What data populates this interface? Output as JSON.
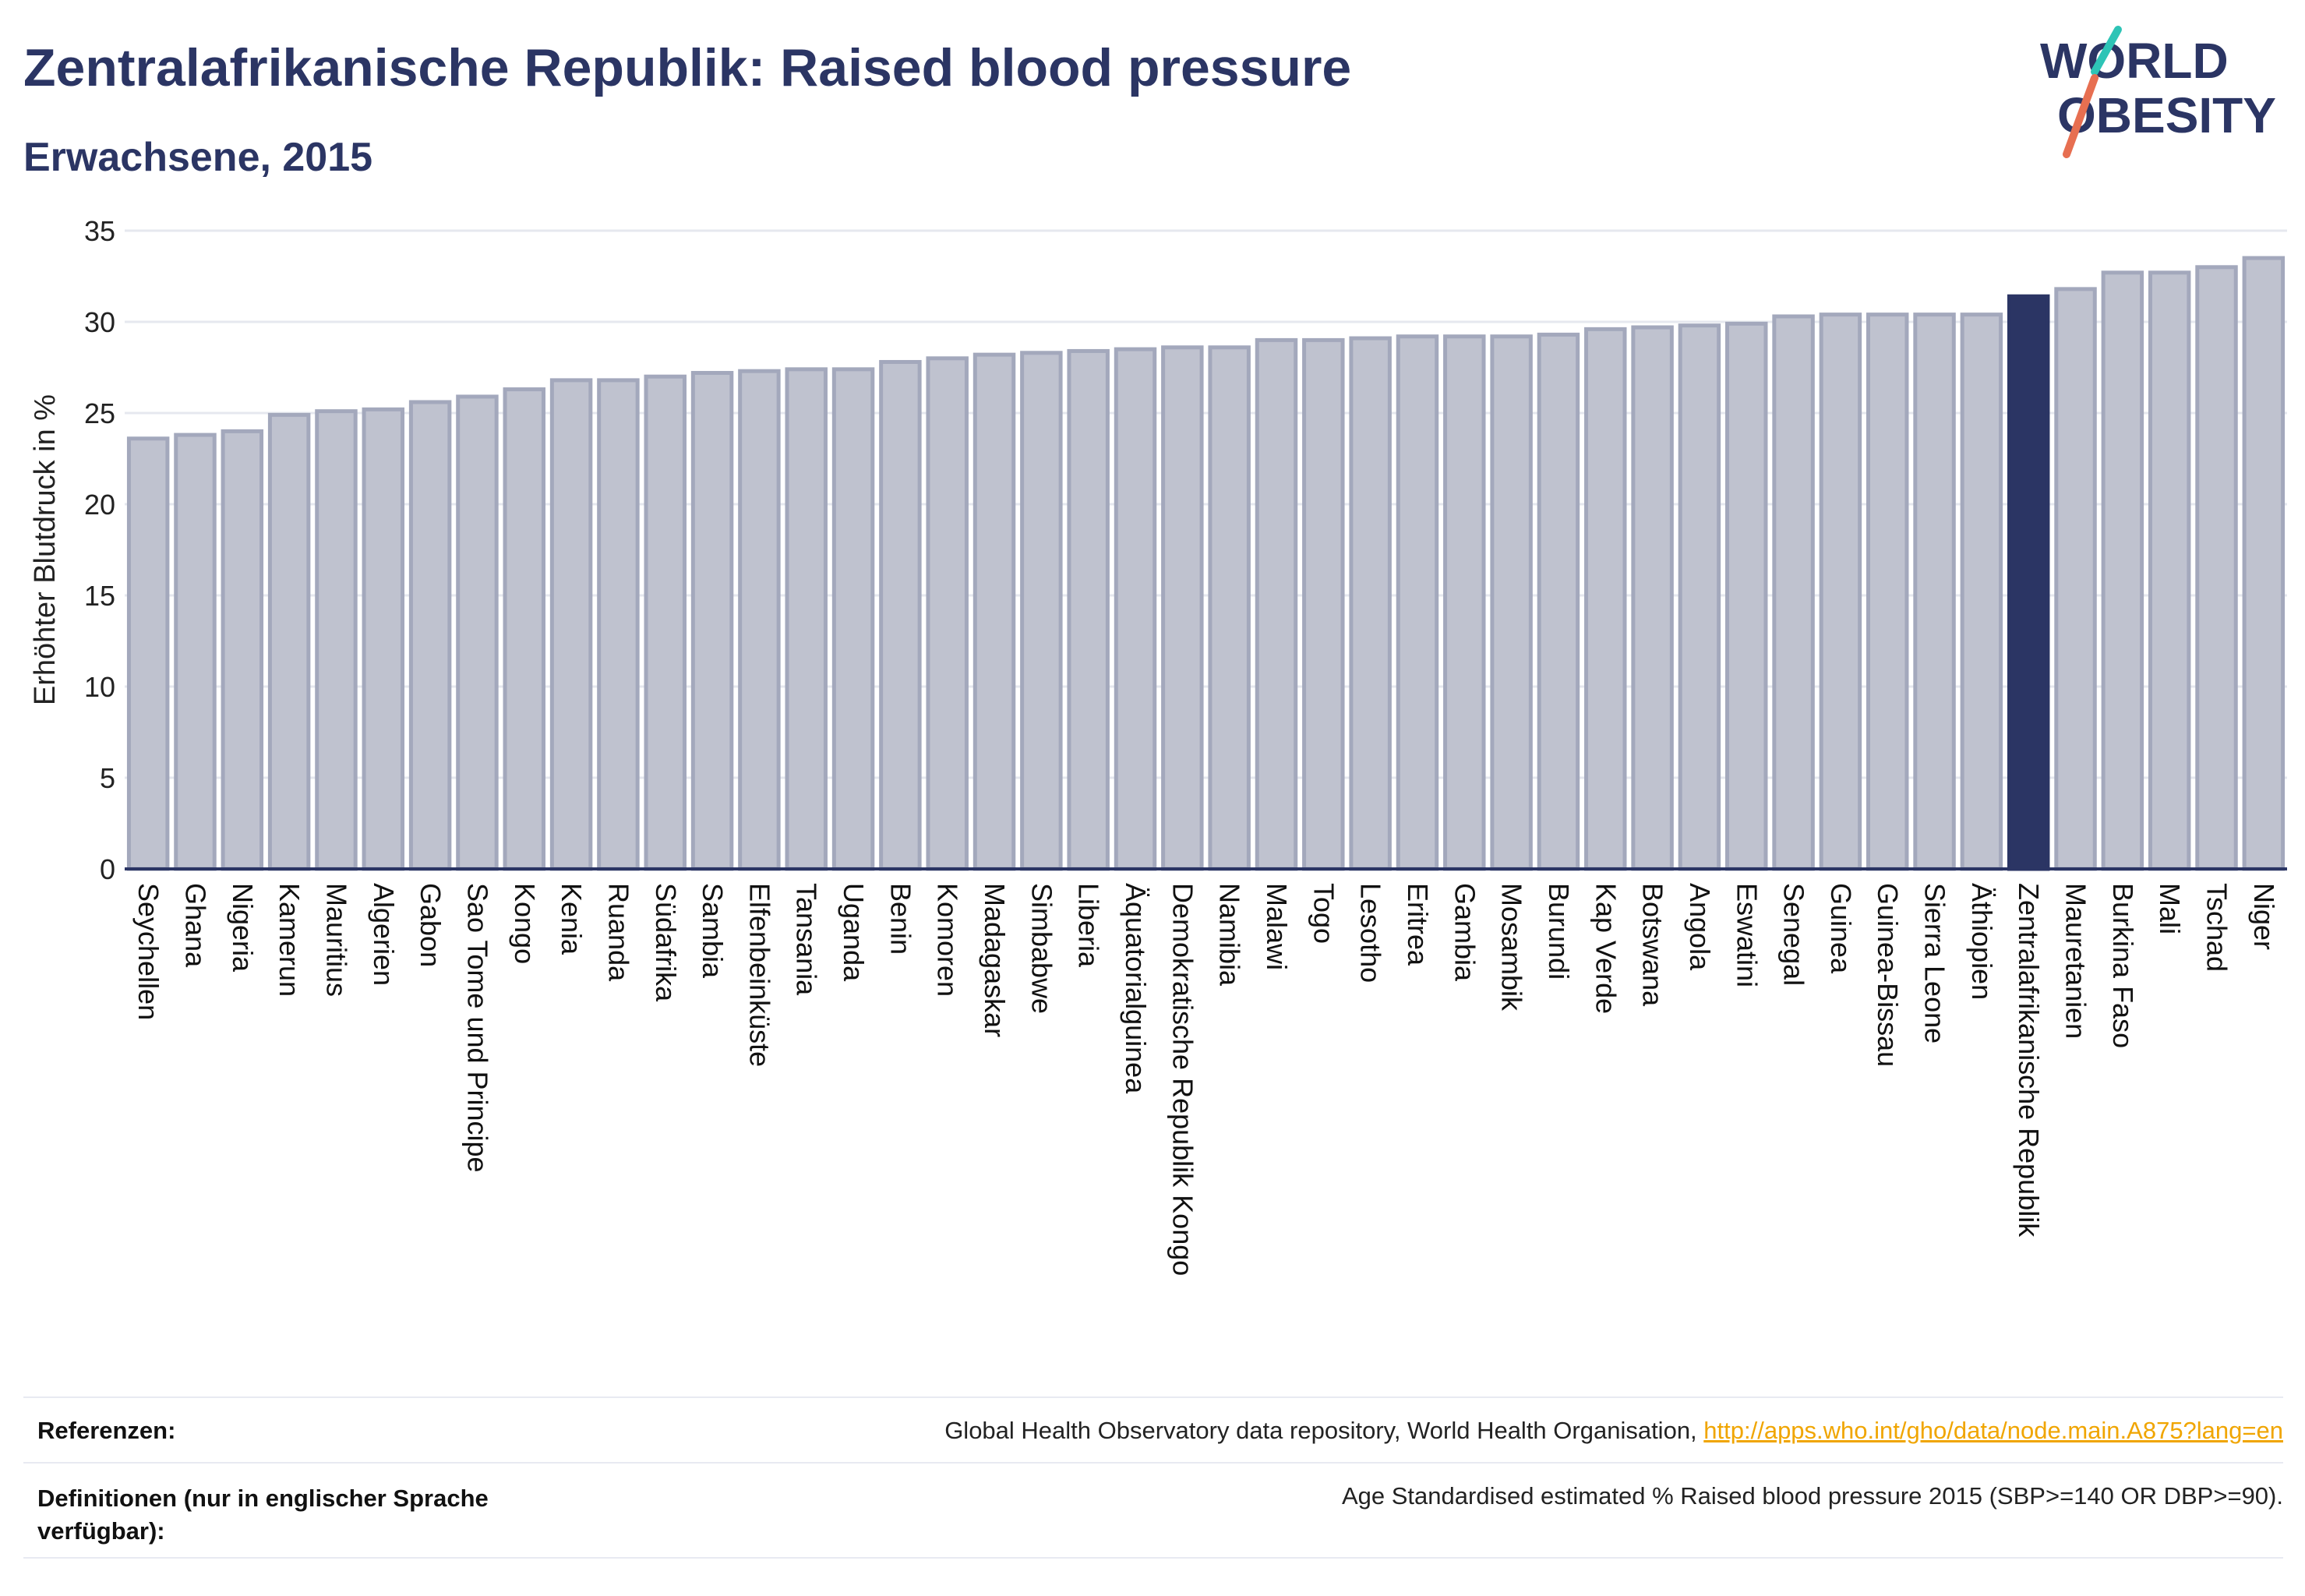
{
  "header": {
    "title": "Zentralafrikanische Republik: Raised blood pressure",
    "subtitle": "Erwachsene, 2015"
  },
  "logo": {
    "line1": "WORLD",
    "line2": "OBESITY",
    "accent_color": "#2ec4b6",
    "slash_color": "#e76f51",
    "text_color": "#2b3564"
  },
  "colors": {
    "bar": "#bfc2cf",
    "bar_edge": "#a3a8bc",
    "highlight": "#2b3564",
    "grid": "#e6e8ef",
    "text": "#2b3564"
  },
  "chart_data": {
    "type": "bar",
    "ylabel": "Erhöhter Blutdruck in %",
    "ylim": [
      0,
      35
    ],
    "yticks": [
      0,
      5,
      10,
      15,
      20,
      25,
      30,
      35
    ],
    "grid": true,
    "highlight": "Zentralafrikanische Republik",
    "categories": [
      "Seychellen",
      "Ghana",
      "Nigeria",
      "Kamerun",
      "Mauritius",
      "Algerien",
      "Gabon",
      "Sao Tome und Principe",
      "Kongo",
      "Kenia",
      "Ruanda",
      "Südafrika",
      "Sambia",
      "Elfenbeinküste",
      "Tansania",
      "Uganda",
      "Benin",
      "Komoren",
      "Madagaskar",
      "Simbabwe",
      "Liberia",
      "Äquatorialguinea",
      "Demokratische Republik Kongo",
      "Namibia",
      "Malawi",
      "Togo",
      "Lesotho",
      "Eritrea",
      "Gambia",
      "Mosambik",
      "Burundi",
      "Kap Verde",
      "Botswana",
      "Angola",
      "Eswatini",
      "Senegal",
      "Guinea",
      "Guinea-Bissau",
      "Sierra Leone",
      "Äthiopien",
      "Zentralafrikanische Republik",
      "Mauretanien",
      "Burkina Faso",
      "Mali",
      "Tschad",
      "Niger"
    ],
    "values": [
      23.6,
      23.8,
      24.0,
      24.9,
      25.1,
      25.2,
      25.6,
      25.9,
      26.3,
      26.8,
      26.8,
      27.0,
      27.2,
      27.3,
      27.4,
      27.4,
      27.8,
      28.0,
      28.2,
      28.3,
      28.4,
      28.5,
      28.6,
      28.6,
      29.0,
      29.0,
      29.1,
      29.2,
      29.2,
      29.2,
      29.3,
      29.6,
      29.7,
      29.8,
      29.9,
      30.3,
      30.4,
      30.4,
      30.4,
      30.4,
      31.4,
      31.8,
      32.7,
      32.7,
      33.0,
      33.5
    ]
  },
  "footer": {
    "ref_label": "Referenzen:",
    "ref_text": "Global Health Observatory data repository, World Health Organisation, ",
    "ref_link": "http://apps.who.int/gho/data/node.main.A875?lang=en",
    "def_label": "Definitionen (nur in englischer Sprache verfügbar):",
    "def_text": "Age Standardised estimated % Raised blood pressure 2015 (SBP>=140 OR DBP>=90)."
  }
}
